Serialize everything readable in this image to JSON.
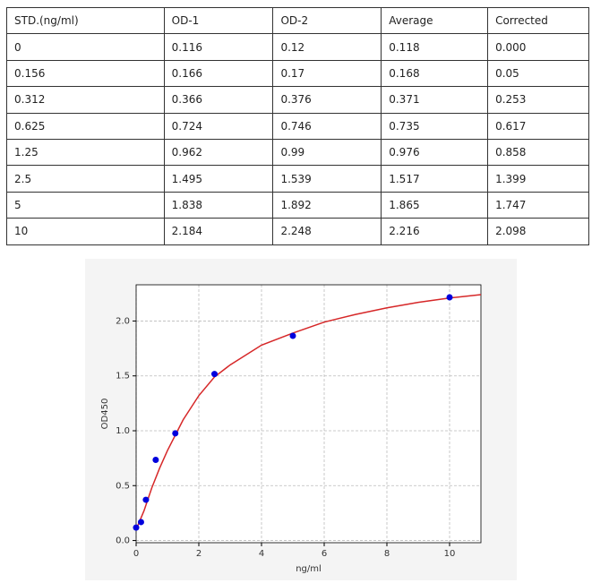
{
  "table": {
    "header": [
      "STD.(ng/ml)",
      "OD-1",
      "OD-2",
      "Average",
      "Corrected"
    ],
    "rows": [
      [
        "0",
        "0.116",
        "0.12",
        "0.118",
        "0.000"
      ],
      [
        "0.156",
        "0.166",
        "0.17",
        "0.168",
        "0.05"
      ],
      [
        "0.312",
        "0.366",
        "0.376",
        "0.371",
        "0.253"
      ],
      [
        "0.625",
        "0.724",
        "0.746",
        "0.735",
        "0.617"
      ],
      [
        "1.25",
        "0.962",
        "0.99",
        "0.976",
        "0.858"
      ],
      [
        "2.5",
        "1.495",
        "1.539",
        "1.517",
        "1.399"
      ],
      [
        "5",
        "1.838",
        "1.892",
        "1.865",
        "1.747"
      ],
      [
        "10",
        "2.184",
        "2.248",
        "2.216",
        "2.098"
      ]
    ]
  },
  "chart_data": {
    "type": "scatter",
    "xlabel": "ng/ml",
    "ylabel": "OD450",
    "xlim": [
      0,
      11
    ],
    "ylim": [
      -0.02,
      2.33
    ],
    "xticks": [
      0,
      2,
      4,
      6,
      8,
      10
    ],
    "yticks": [
      {
        "value": 0,
        "label": "0.0"
      },
      {
        "value": 0.5,
        "label": "0.5"
      },
      {
        "value": 1,
        "label": "1.0"
      },
      {
        "value": 1.5,
        "label": "1.5"
      },
      {
        "value": 2,
        "label": "2.0"
      }
    ],
    "grid": true,
    "series": [
      {
        "type": "scatter",
        "color": "#0000dd",
        "x": [
          0,
          0.156,
          0.312,
          0.625,
          1.25,
          2.5,
          5,
          10
        ],
        "values": [
          0.118,
          0.168,
          0.371,
          0.735,
          0.976,
          1.517,
          1.865,
          2.216
        ]
      },
      {
        "type": "line",
        "color": "#d62728",
        "x": [
          0,
          0.25,
          0.5,
          0.75,
          1,
          1.5,
          2,
          2.5,
          3,
          4,
          5,
          6,
          7,
          8,
          9,
          10,
          11
        ],
        "values": [
          0.1,
          0.27,
          0.48,
          0.66,
          0.82,
          1.1,
          1.32,
          1.49,
          1.6,
          1.78,
          1.89,
          1.99,
          2.06,
          2.12,
          2.17,
          2.21,
          2.24
        ]
      }
    ]
  }
}
